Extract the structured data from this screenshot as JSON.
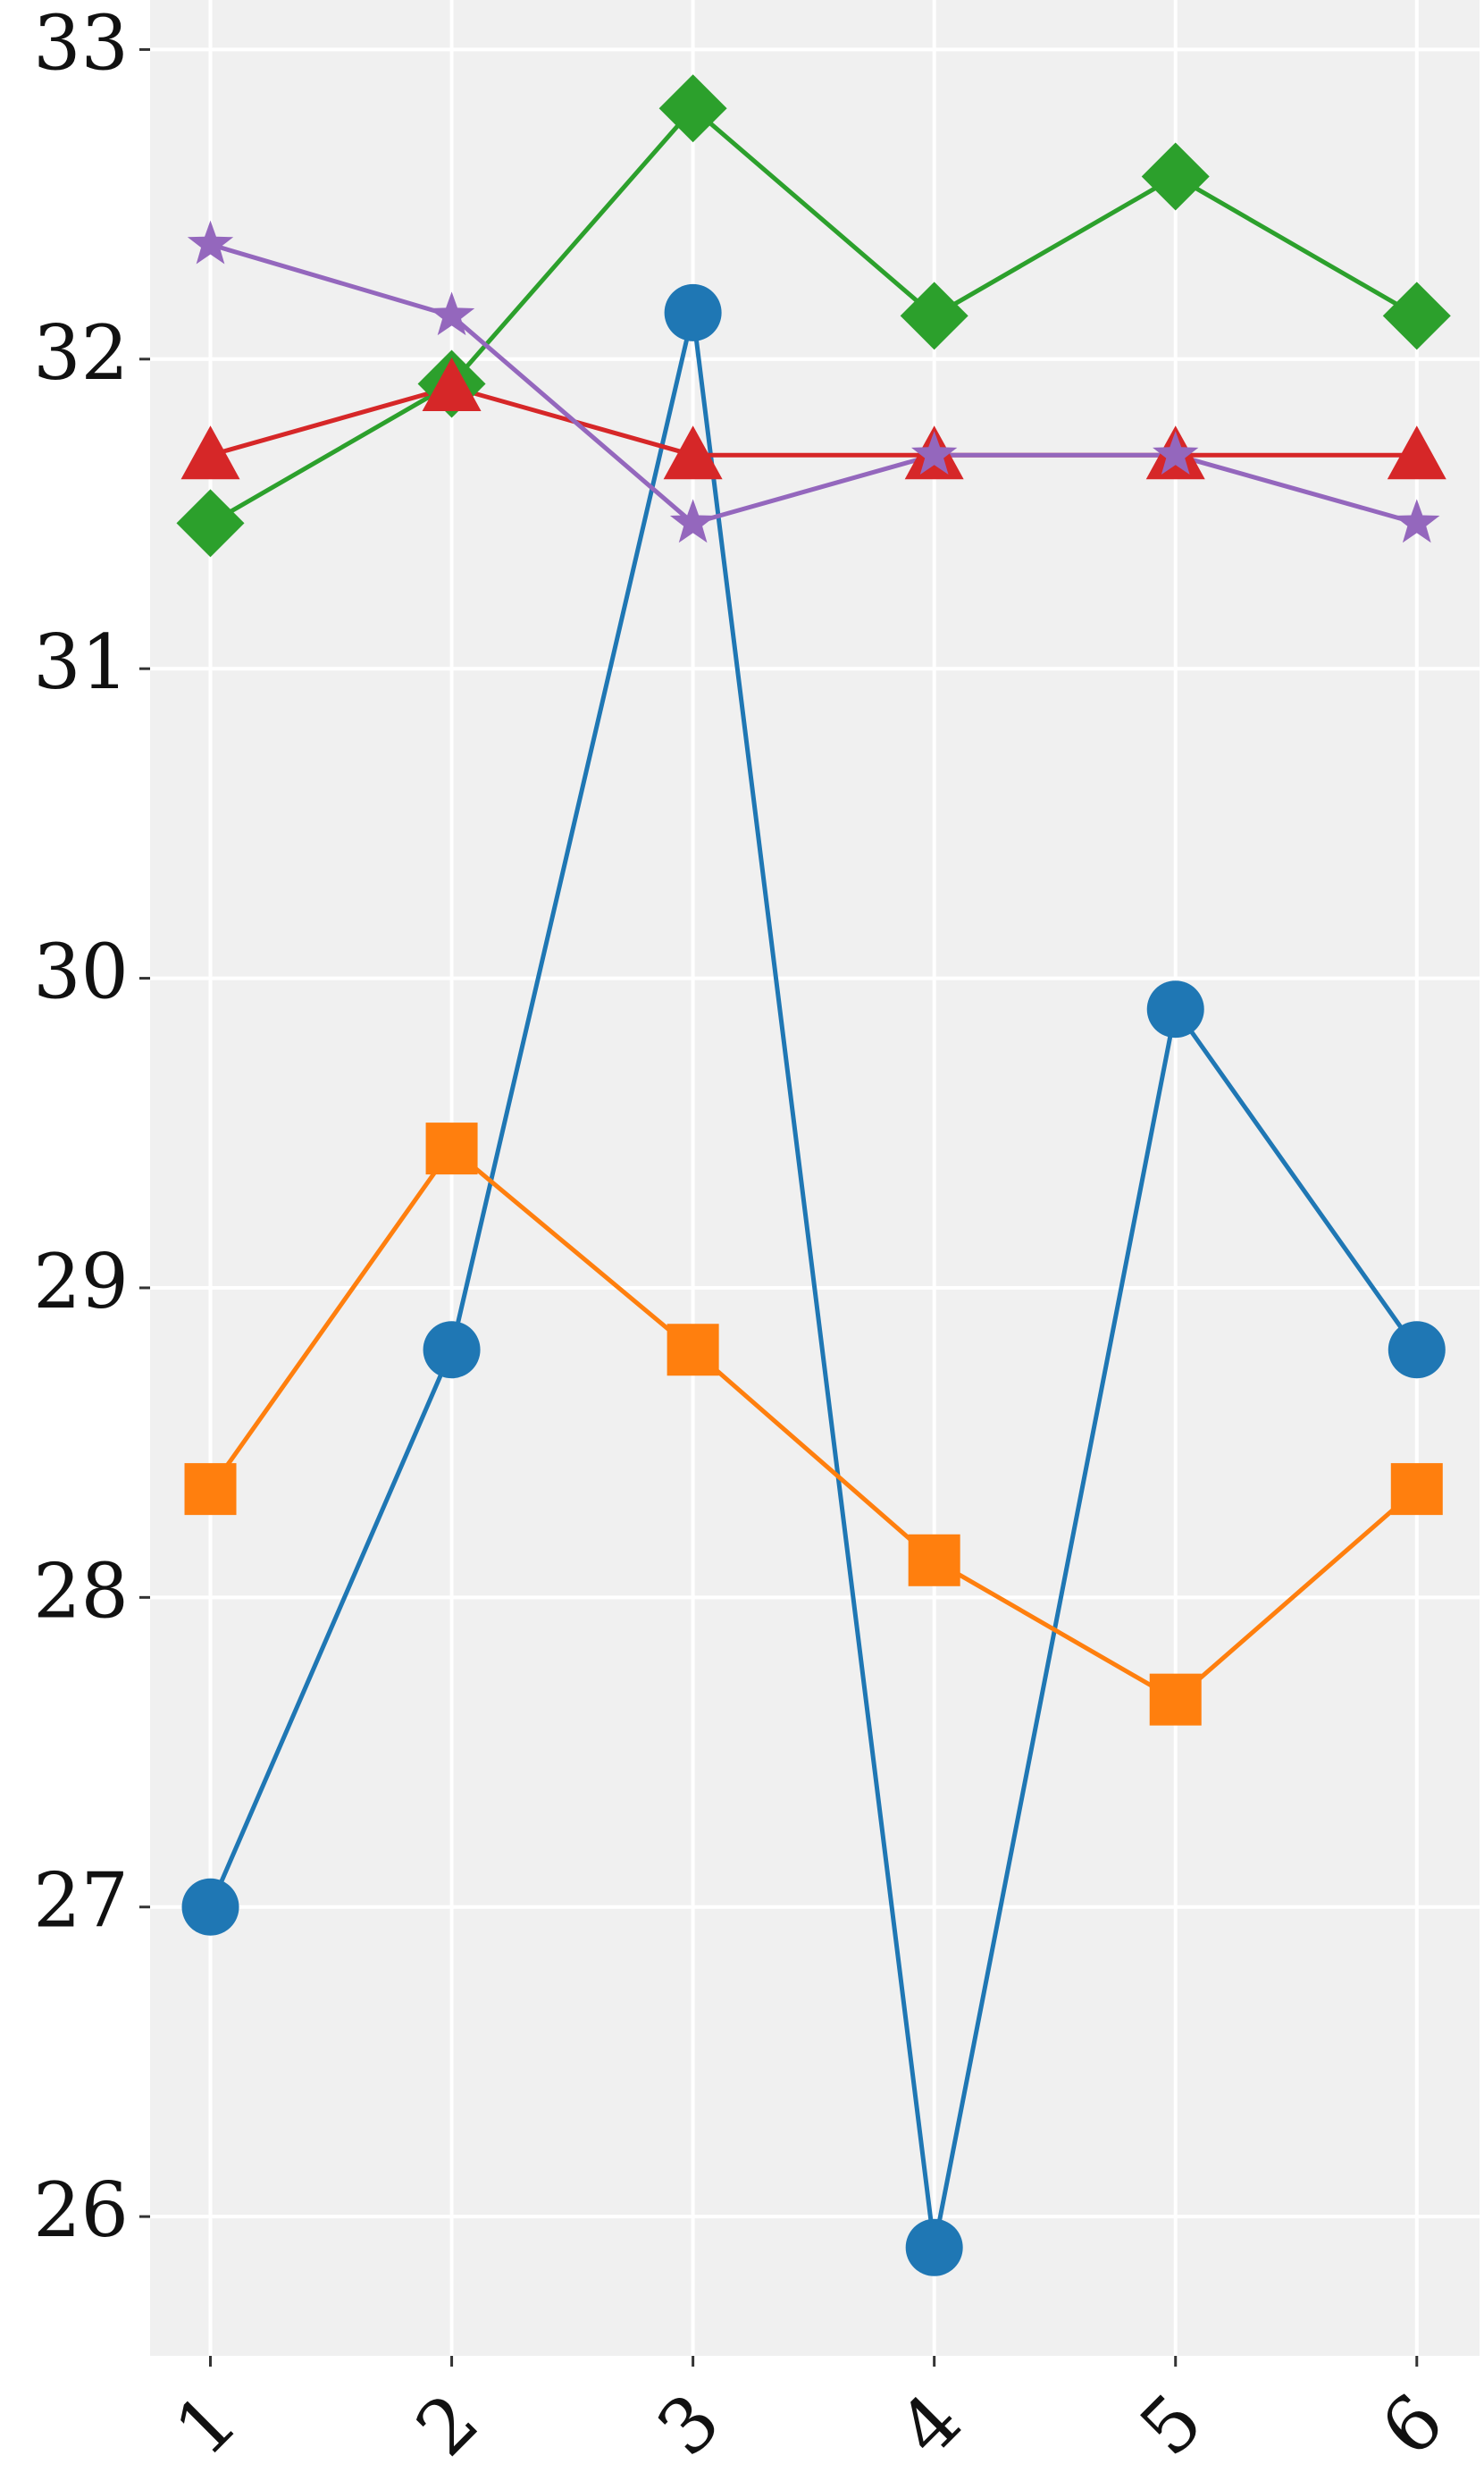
{
  "chart_data": {
    "type": "line",
    "x": [
      1,
      2,
      3,
      4,
      5,
      6
    ],
    "series": [
      {
        "color": "#1f77b4",
        "marker": "circle",
        "values": [
          27.0,
          28.8,
          32.15,
          25.9,
          29.9,
          28.8
        ]
      },
      {
        "color": "#ff7f0e",
        "marker": "square",
        "values": [
          28.35,
          29.45,
          28.8,
          28.12,
          27.67,
          28.35
        ]
      },
      {
        "color": "#2ca02c",
        "marker": "diamond",
        "values": [
          31.47,
          31.92,
          32.81,
          32.14,
          32.59,
          32.14
        ]
      },
      {
        "color": "#d62728",
        "marker": "triangle",
        "values": [
          31.69,
          31.91,
          31.69,
          31.69,
          31.69,
          31.69
        ]
      },
      {
        "color": "#9467bd",
        "marker": "star",
        "values": [
          32.37,
          32.14,
          31.47,
          31.69,
          31.69,
          31.47
        ]
      }
    ],
    "xlim": [
      0.75,
      6.26
    ],
    "xticks": [
      1,
      2,
      3,
      4,
      5,
      6
    ],
    "ylim": [
      25.55,
      33.16
    ],
    "yticks": [
      26,
      27,
      28,
      29,
      30,
      31,
      32,
      33
    ],
    "grid": true
  }
}
